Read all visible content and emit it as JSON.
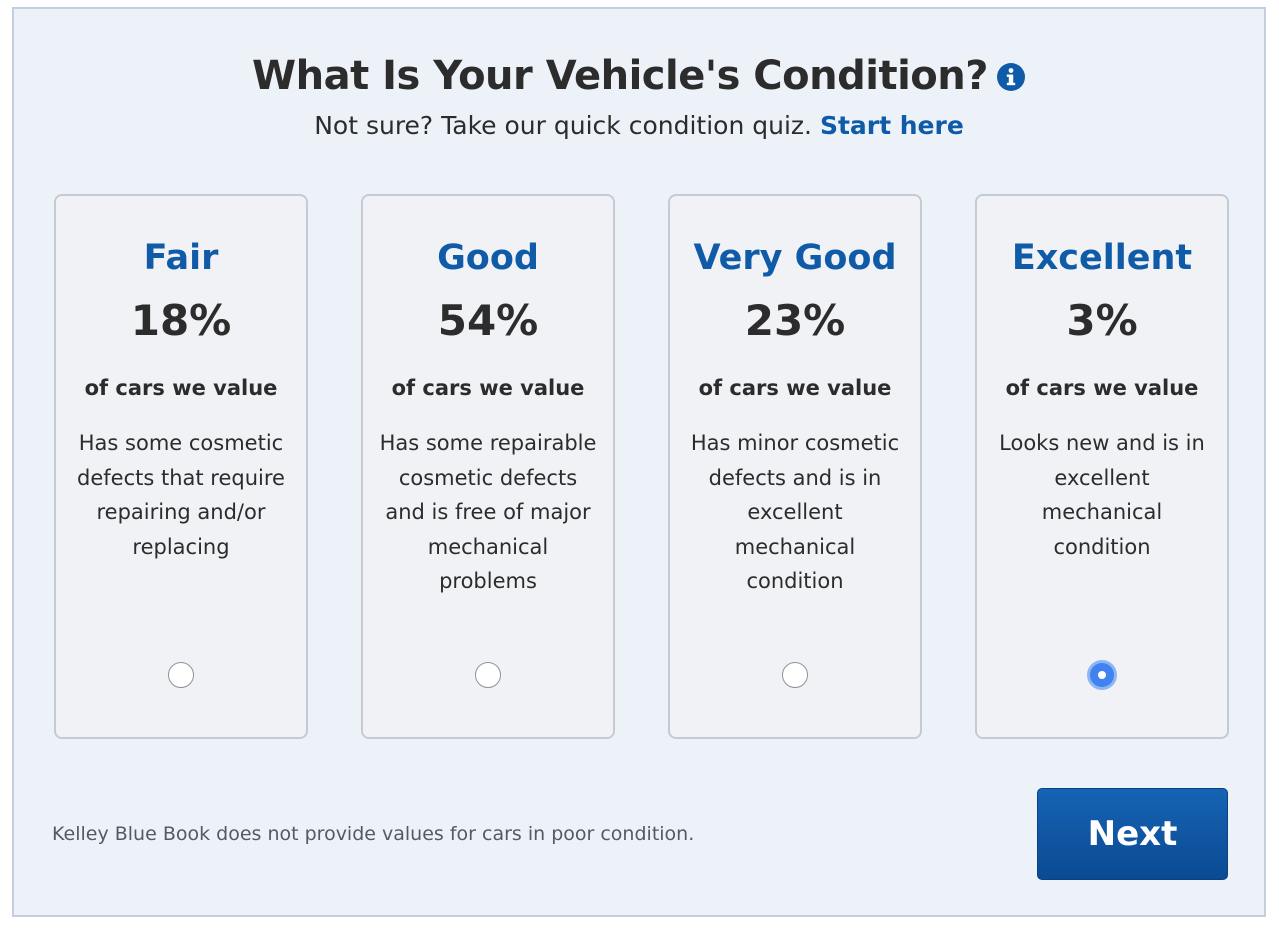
{
  "header": {
    "title": "What Is Your Vehicle's Condition?",
    "info_icon": "info-circle-icon",
    "subtitle": "Not sure? Take our quick condition quiz.",
    "quiz_link": "Start here"
  },
  "conditions": [
    {
      "title": "Fair",
      "percent": "18%",
      "caption": "of cars we value",
      "description": "Has some cosmetic defects that require repairing and/or replacing",
      "selected": false
    },
    {
      "title": "Good",
      "percent": "54%",
      "caption": "of cars we value",
      "description": "Has some repairable cosmetic defects and is free of major mechanical problems",
      "selected": false
    },
    {
      "title": "Very Good",
      "percent": "23%",
      "caption": "of cars we value",
      "description": "Has minor cosmetic defects and is in excellent mechanical condition",
      "selected": false
    },
    {
      "title": "Excellent",
      "percent": "3%",
      "caption": "of cars we value",
      "description": "Looks new and is in excellent mechanical condition",
      "selected": true
    }
  ],
  "footer": {
    "note": "Kelley Blue Book does not provide values for cars in poor condition.",
    "next_label": "Next"
  },
  "colors": {
    "accent": "#0f5ba8",
    "panel_bg": "#edf2f9",
    "card_bg": "#f1f2f5",
    "radio_selected": "#3f82f0",
    "button_bg": "#0b4a93"
  }
}
